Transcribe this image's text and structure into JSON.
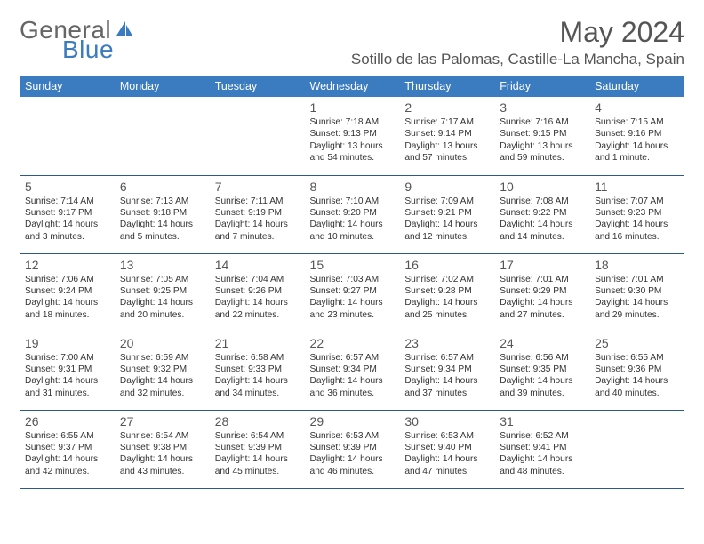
{
  "logo": {
    "text1": "General",
    "text2": "Blue",
    "icon_color": "#3b7bbf"
  },
  "title": "May 2024",
  "location": "Sotillo de las Palomas, Castille-La Mancha, Spain",
  "header_bg": "#3b7bbf",
  "border_color": "#2a5a8a",
  "weekdays": [
    "Sunday",
    "Monday",
    "Tuesday",
    "Wednesday",
    "Thursday",
    "Friday",
    "Saturday"
  ],
  "weeks": [
    [
      null,
      null,
      null,
      {
        "d": "1",
        "sr": "7:18 AM",
        "ss": "9:13 PM",
        "dl": "13 hours and 54 minutes."
      },
      {
        "d": "2",
        "sr": "7:17 AM",
        "ss": "9:14 PM",
        "dl": "13 hours and 57 minutes."
      },
      {
        "d": "3",
        "sr": "7:16 AM",
        "ss": "9:15 PM",
        "dl": "13 hours and 59 minutes."
      },
      {
        "d": "4",
        "sr": "7:15 AM",
        "ss": "9:16 PM",
        "dl": "14 hours and 1 minute."
      }
    ],
    [
      {
        "d": "5",
        "sr": "7:14 AM",
        "ss": "9:17 PM",
        "dl": "14 hours and 3 minutes."
      },
      {
        "d": "6",
        "sr": "7:13 AM",
        "ss": "9:18 PM",
        "dl": "14 hours and 5 minutes."
      },
      {
        "d": "7",
        "sr": "7:11 AM",
        "ss": "9:19 PM",
        "dl": "14 hours and 7 minutes."
      },
      {
        "d": "8",
        "sr": "7:10 AM",
        "ss": "9:20 PM",
        "dl": "14 hours and 10 minutes."
      },
      {
        "d": "9",
        "sr": "7:09 AM",
        "ss": "9:21 PM",
        "dl": "14 hours and 12 minutes."
      },
      {
        "d": "10",
        "sr": "7:08 AM",
        "ss": "9:22 PM",
        "dl": "14 hours and 14 minutes."
      },
      {
        "d": "11",
        "sr": "7:07 AM",
        "ss": "9:23 PM",
        "dl": "14 hours and 16 minutes."
      }
    ],
    [
      {
        "d": "12",
        "sr": "7:06 AM",
        "ss": "9:24 PM",
        "dl": "14 hours and 18 minutes."
      },
      {
        "d": "13",
        "sr": "7:05 AM",
        "ss": "9:25 PM",
        "dl": "14 hours and 20 minutes."
      },
      {
        "d": "14",
        "sr": "7:04 AM",
        "ss": "9:26 PM",
        "dl": "14 hours and 22 minutes."
      },
      {
        "d": "15",
        "sr": "7:03 AM",
        "ss": "9:27 PM",
        "dl": "14 hours and 23 minutes."
      },
      {
        "d": "16",
        "sr": "7:02 AM",
        "ss": "9:28 PM",
        "dl": "14 hours and 25 minutes."
      },
      {
        "d": "17",
        "sr": "7:01 AM",
        "ss": "9:29 PM",
        "dl": "14 hours and 27 minutes."
      },
      {
        "d": "18",
        "sr": "7:01 AM",
        "ss": "9:30 PM",
        "dl": "14 hours and 29 minutes."
      }
    ],
    [
      {
        "d": "19",
        "sr": "7:00 AM",
        "ss": "9:31 PM",
        "dl": "14 hours and 31 minutes."
      },
      {
        "d": "20",
        "sr": "6:59 AM",
        "ss": "9:32 PM",
        "dl": "14 hours and 32 minutes."
      },
      {
        "d": "21",
        "sr": "6:58 AM",
        "ss": "9:33 PM",
        "dl": "14 hours and 34 minutes."
      },
      {
        "d": "22",
        "sr": "6:57 AM",
        "ss": "9:34 PM",
        "dl": "14 hours and 36 minutes."
      },
      {
        "d": "23",
        "sr": "6:57 AM",
        "ss": "9:34 PM",
        "dl": "14 hours and 37 minutes."
      },
      {
        "d": "24",
        "sr": "6:56 AM",
        "ss": "9:35 PM",
        "dl": "14 hours and 39 minutes."
      },
      {
        "d": "25",
        "sr": "6:55 AM",
        "ss": "9:36 PM",
        "dl": "14 hours and 40 minutes."
      }
    ],
    [
      {
        "d": "26",
        "sr": "6:55 AM",
        "ss": "9:37 PM",
        "dl": "14 hours and 42 minutes."
      },
      {
        "d": "27",
        "sr": "6:54 AM",
        "ss": "9:38 PM",
        "dl": "14 hours and 43 minutes."
      },
      {
        "d": "28",
        "sr": "6:54 AM",
        "ss": "9:39 PM",
        "dl": "14 hours and 45 minutes."
      },
      {
        "d": "29",
        "sr": "6:53 AM",
        "ss": "9:39 PM",
        "dl": "14 hours and 46 minutes."
      },
      {
        "d": "30",
        "sr": "6:53 AM",
        "ss": "9:40 PM",
        "dl": "14 hours and 47 minutes."
      },
      {
        "d": "31",
        "sr": "6:52 AM",
        "ss": "9:41 PM",
        "dl": "14 hours and 48 minutes."
      },
      null
    ]
  ],
  "labels": {
    "sunrise": "Sunrise: ",
    "sunset": "Sunset: ",
    "daylight": "Daylight: "
  }
}
